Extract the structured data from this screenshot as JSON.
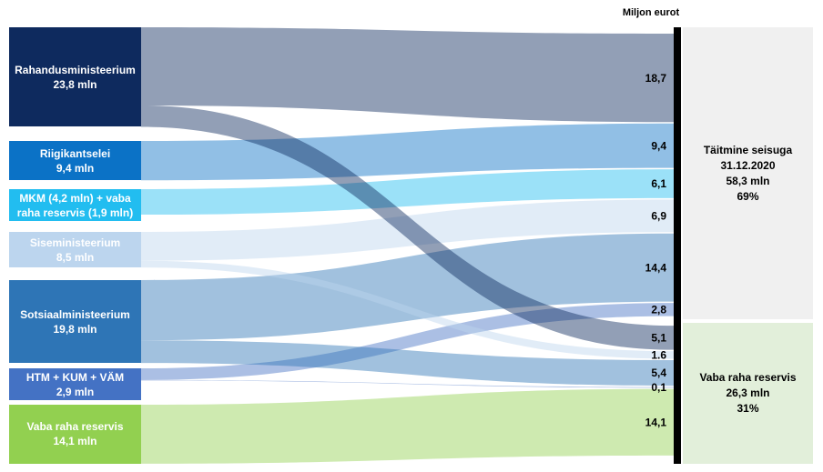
{
  "chart_data": {
    "type": "sankey",
    "unit_label": "Miljon eurot",
    "sources": [
      {
        "name": "Rahandusministeerium",
        "value": 23.8,
        "value_label": "23,8 mln",
        "color": "#0e2a5e"
      },
      {
        "name": "Riigikantselei",
        "value": 9.4,
        "value_label": "9,4 mln",
        "color": "#0b72c6"
      },
      {
        "name": "MKM (4,2 mln) + vaba raha reservis (1,9 mln)",
        "value": 6.1,
        "value_label": null,
        "color": "#22bdf0"
      },
      {
        "name": "Siseministeerium",
        "value": 8.5,
        "value_label": "8,5 mln",
        "color": "#bcd5ee"
      },
      {
        "name": "Sotsiaalministeerium",
        "value": 19.8,
        "value_label": "19,8 mln",
        "color": "#2e75b6"
      },
      {
        "name": "HTM + KUM + VÄM",
        "value": 2.9,
        "value_label": "2,9 mln",
        "color": "#4472c4"
      },
      {
        "name": "Vaba raha reservis",
        "value": 14.1,
        "value_label": "14,1 mln",
        "color": "#92d050"
      }
    ],
    "targets": [
      {
        "name": "Täitmine seisuga",
        "date": "31.12.2020",
        "value": 58.3,
        "value_label": "58,3 mln",
        "share": 69,
        "share_label": "69%",
        "color": "#f0f0f0"
      },
      {
        "name": "Vaba raha reservis",
        "date": null,
        "value": 26.3,
        "value_label": "26,3 mln",
        "share": 31,
        "share_label": "31%",
        "color": "#e2efda"
      }
    ],
    "flows": [
      {
        "from": "Rahandusministeerium",
        "to": "Täitmine seisuga",
        "value": 18.7,
        "value_label": "18,7"
      },
      {
        "from": "Riigikantselei",
        "to": "Täitmine seisuga",
        "value": 9.4,
        "value_label": "9,4"
      },
      {
        "from": "MKM (4,2 mln) + vaba raha reservis (1,9 mln)",
        "to": "Täitmine seisuga",
        "value": 6.1,
        "value_label": "6,1"
      },
      {
        "from": "Siseministeerium",
        "to": "Täitmine seisuga",
        "value": 6.9,
        "value_label": "6,9"
      },
      {
        "from": "Sotsiaalministeerium",
        "to": "Täitmine seisuga",
        "value": 14.4,
        "value_label": "14,4"
      },
      {
        "from": "HTM + KUM + VÄM",
        "to": "Täitmine seisuga",
        "value": 2.8,
        "value_label": "2,8"
      },
      {
        "from": "Rahandusministeerium",
        "to": "Vaba raha reservis",
        "value": 5.1,
        "value_label": "5,1"
      },
      {
        "from": "Siseministeerium",
        "to": "Vaba raha reservis",
        "value": 1.6,
        "value_label": "1.6"
      },
      {
        "from": "Sotsiaalministeerium",
        "to": "Vaba raha reservis",
        "value": 5.4,
        "value_label": "5,4"
      },
      {
        "from": "HTM + KUM + VÄM",
        "to": "Vaba raha reservis",
        "value": 0.1,
        "value_label": "0,1"
      },
      {
        "from": "Vaba raha reservis",
        "to": "Vaba raha reservis",
        "value": 14.1,
        "value_label": "14,1"
      }
    ]
  }
}
